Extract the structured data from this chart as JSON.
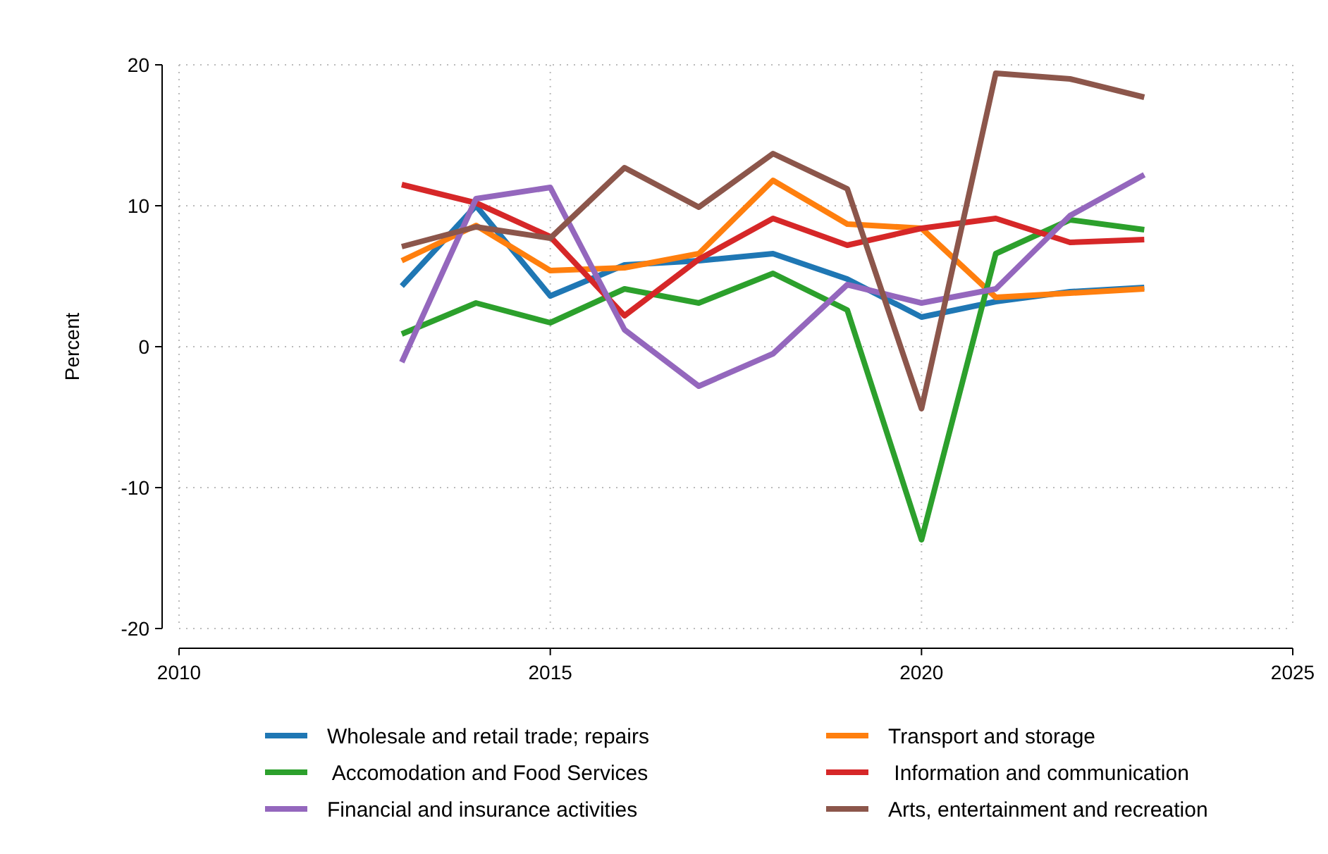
{
  "chart_data": {
    "type": "line",
    "ylabel": "Percent",
    "x": [
      2013,
      2014,
      2015,
      2016,
      2017,
      2018,
      2019,
      2020,
      2021,
      2022,
      2023
    ],
    "xlim": [
      2010,
      2025
    ],
    "xticks": [
      2010,
      2015,
      2020,
      2025
    ],
    "ylim": [
      -20,
      20
    ],
    "yticks": [
      -20,
      -10,
      0,
      10,
      20
    ],
    "grid": true,
    "legend": "bottom",
    "line_style": "solid",
    "marker": "none",
    "series": [
      {
        "name": "Wholesale and retail trade; repairs",
        "color": "#1f77b4",
        "values": [
          4.3,
          10,
          3.6,
          5.8,
          6.1,
          6.6,
          4.8,
          2.1,
          3.2,
          3.9,
          4.2
        ]
      },
      {
        "name": "Transport and storage",
        "color": "#ff7f0e",
        "values": [
          6.1,
          8.6,
          5.4,
          5.6,
          6.6,
          11.8,
          8.7,
          8.4,
          3.5,
          3.8,
          4.1
        ]
      },
      {
        "name": " Accomodation and Food Services",
        "color": "#2ca02c",
        "values": [
          0.9,
          3.1,
          1.7,
          4.1,
          3.1,
          5.2,
          2.6,
          -13.7,
          6.6,
          9.0,
          8.3
        ]
      },
      {
        "name": " Information and communication",
        "color": "#d62728",
        "values": [
          11.5,
          10.2,
          7.8,
          2.2,
          6.2,
          9.1,
          7.2,
          8.4,
          9.1,
          7.4,
          7.6
        ]
      },
      {
        "name": "Financial and insurance activities",
        "color": "#9467bd",
        "values": [
          -1.1,
          10.5,
          11.3,
          1.2,
          -2.8,
          -0.5,
          4.4,
          3.1,
          4.1,
          9.3,
          12.2
        ]
      },
      {
        "name": "Arts, entertainment and recreation",
        "color": "#8c564b",
        "values": [
          7.1,
          8.5,
          7.7,
          12.7,
          9.9,
          13.7,
          11.2,
          -4.4,
          19.4,
          19.0,
          17.7
        ]
      }
    ]
  }
}
